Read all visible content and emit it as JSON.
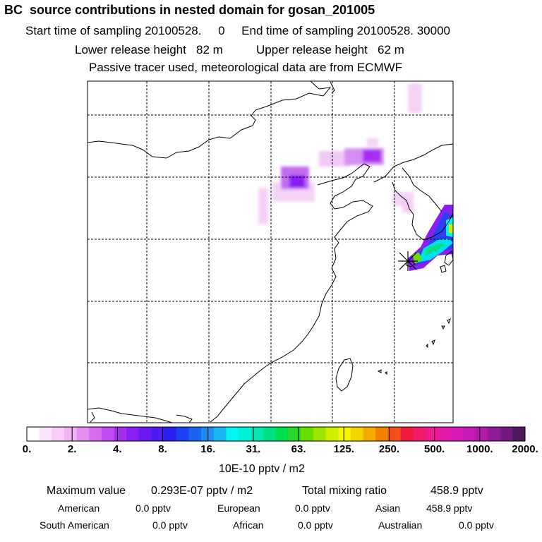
{
  "header": {
    "title": "BC  source contributions in nested domain for gosan_201005",
    "sampling_line": "Start time of sampling 20100528.     0     End time of sampling 20100528. 30000",
    "release_line": "Lower release height   82 m          Upper release height   62 m",
    "info_line": "Passive tracer used, meteorological data are from ECMWF"
  },
  "colorbar": {
    "colors": [
      "#ffffff",
      "#fbe6fb",
      "#f7cdf7",
      "#f2b3f2",
      "#e58ef2",
      "#d56cf0",
      "#c34bf2",
      "#a72df0",
      "#8a1ff2",
      "#6a1af0",
      "#4d1af2",
      "#2a1ff2",
      "#1a40f2",
      "#1a62f2",
      "#1a8ef2",
      "#1ab4f2",
      "#00f5f5",
      "#00f2d6",
      "#00eab0",
      "#00e282",
      "#00e04e",
      "#2ad82a",
      "#66de00",
      "#9ee600",
      "#d2ee00",
      "#f5f500",
      "#f5d200",
      "#f5aa00",
      "#f57f00",
      "#f54e1a",
      "#f51a3a",
      "#f21a6a",
      "#f01a90",
      "#e61aa8",
      "#d81ab8",
      "#c81ab8",
      "#b31aa8",
      "#931a96",
      "#731a80",
      "#4e1a5a"
    ],
    "tick_labels": [
      "0.",
      "2.",
      "4.",
      "8.",
      "16.",
      "31.",
      "63.",
      "125.",
      "250.",
      "500.",
      "1000.",
      "2000."
    ],
    "unit_label": "10E-10 pptv / m2"
  },
  "stats": {
    "maximum_label": "Maximum value",
    "maximum_value": "0.293E-07 pptv / m2",
    "total_label": "Total mixing ratio",
    "total_value": "458.9 pptv",
    "regions": [
      {
        "name": "American",
        "value": "0.0 pptv"
      },
      {
        "name": "European",
        "value": "0.0 pptv"
      },
      {
        "name": "Asian",
        "value": "458.9 pptv"
      },
      {
        "name": "South American",
        "value": "0.0 pptv"
      },
      {
        "name": "African",
        "value": "0.0 pptv"
      },
      {
        "name": "Australian",
        "value": "0.0 pptv"
      }
    ]
  },
  "map": {
    "receptor_marker": "star-burst"
  }
}
